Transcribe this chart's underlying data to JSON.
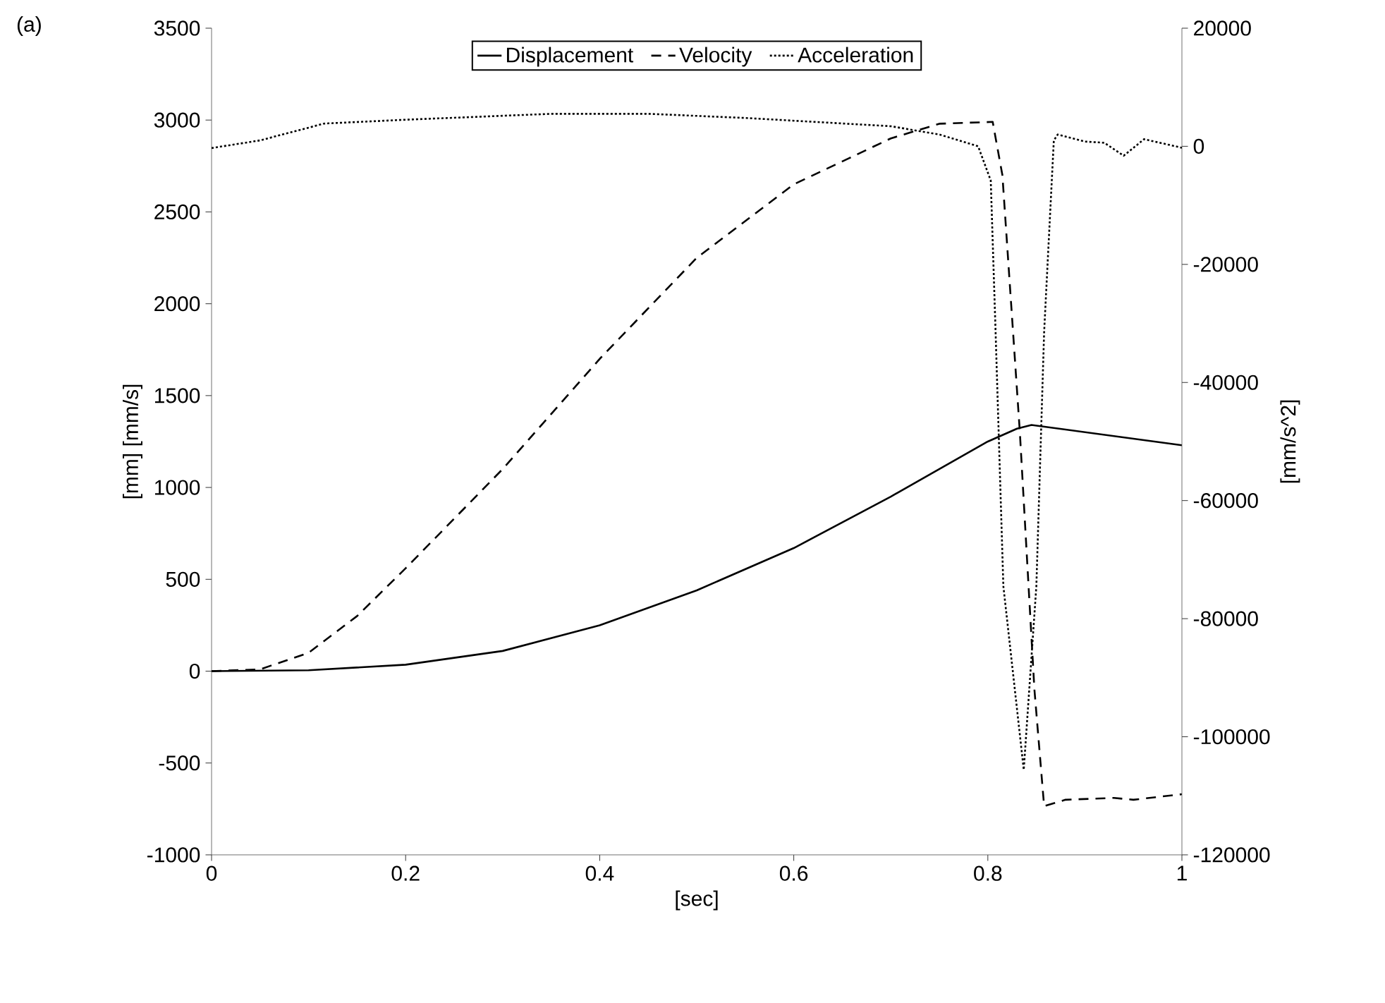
{
  "chart_data": {
    "type": "line",
    "xlabel": "[sec]",
    "ylabel": "[mm] [mm/s]",
    "y2label": "[mm/s^2]",
    "annotations": [
      "(a)"
    ],
    "xlim": [
      0,
      1
    ],
    "xticks": [
      0,
      0.2,
      0.4,
      0.6,
      0.8,
      1
    ],
    "ylim": [
      -1000,
      3500
    ],
    "yticks": [
      -1000,
      -500,
      0,
      500,
      1000,
      1500,
      2000,
      2500,
      3000,
      3500
    ],
    "y2lim": [
      -120000,
      20000
    ],
    "y2ticks": [
      -120000,
      -100000,
      -80000,
      -60000,
      -40000,
      -20000,
      0,
      20000
    ],
    "grid": false,
    "legend": "top",
    "marker": "none",
    "series": [
      {
        "name": "Displacement",
        "color": "#000000",
        "line_style": "solid",
        "x": [
          0,
          0.1,
          0.2,
          0.3,
          0.4,
          0.5,
          0.6,
          0.7,
          0.8,
          0.83,
          0.845,
          1.0
        ],
        "values": [
          0,
          5,
          35,
          110,
          250,
          440,
          670,
          950,
          1250,
          1320,
          1340,
          1230
        ]
      },
      {
        "name": "Velocity",
        "color": "#000000",
        "line_style": "dashed",
        "x": [
          0,
          0.05,
          0.1,
          0.15,
          0.2,
          0.3,
          0.4,
          0.5,
          0.6,
          0.7,
          0.75,
          0.805,
          0.815,
          0.833,
          0.848,
          0.858,
          0.88,
          0.93,
          0.95,
          1.0
        ],
        "values": [
          0,
          10,
          100,
          300,
          560,
          1100,
          1700,
          2250,
          2650,
          2900,
          2980,
          2990,
          2700,
          1300,
          -100,
          -735,
          -700,
          -690,
          -700,
          -670
        ]
      },
      {
        "name": "Acceleration",
        "color": "#000000",
        "line_style": "dotted",
        "axis": "y2",
        "x": [
          0,
          0.05,
          0.116,
          0.2,
          0.35,
          0.45,
          0.55,
          0.7,
          0.75,
          0.79,
          0.803,
          0.808,
          0.816,
          0.837,
          0.85,
          0.858,
          0.868,
          0.872,
          0.9,
          0.92,
          0.94,
          0.961,
          0.98,
          1.0
        ],
        "values": [
          -300,
          1000,
          3850,
          4500,
          5500,
          5500,
          4800,
          3400,
          2000,
          0,
          -5800,
          -31500,
          -74500,
          -105600,
          -74500,
          -31500,
          1000,
          2000,
          800,
          600,
          -1600,
          1200,
          500,
          -250
        ]
      }
    ]
  }
}
